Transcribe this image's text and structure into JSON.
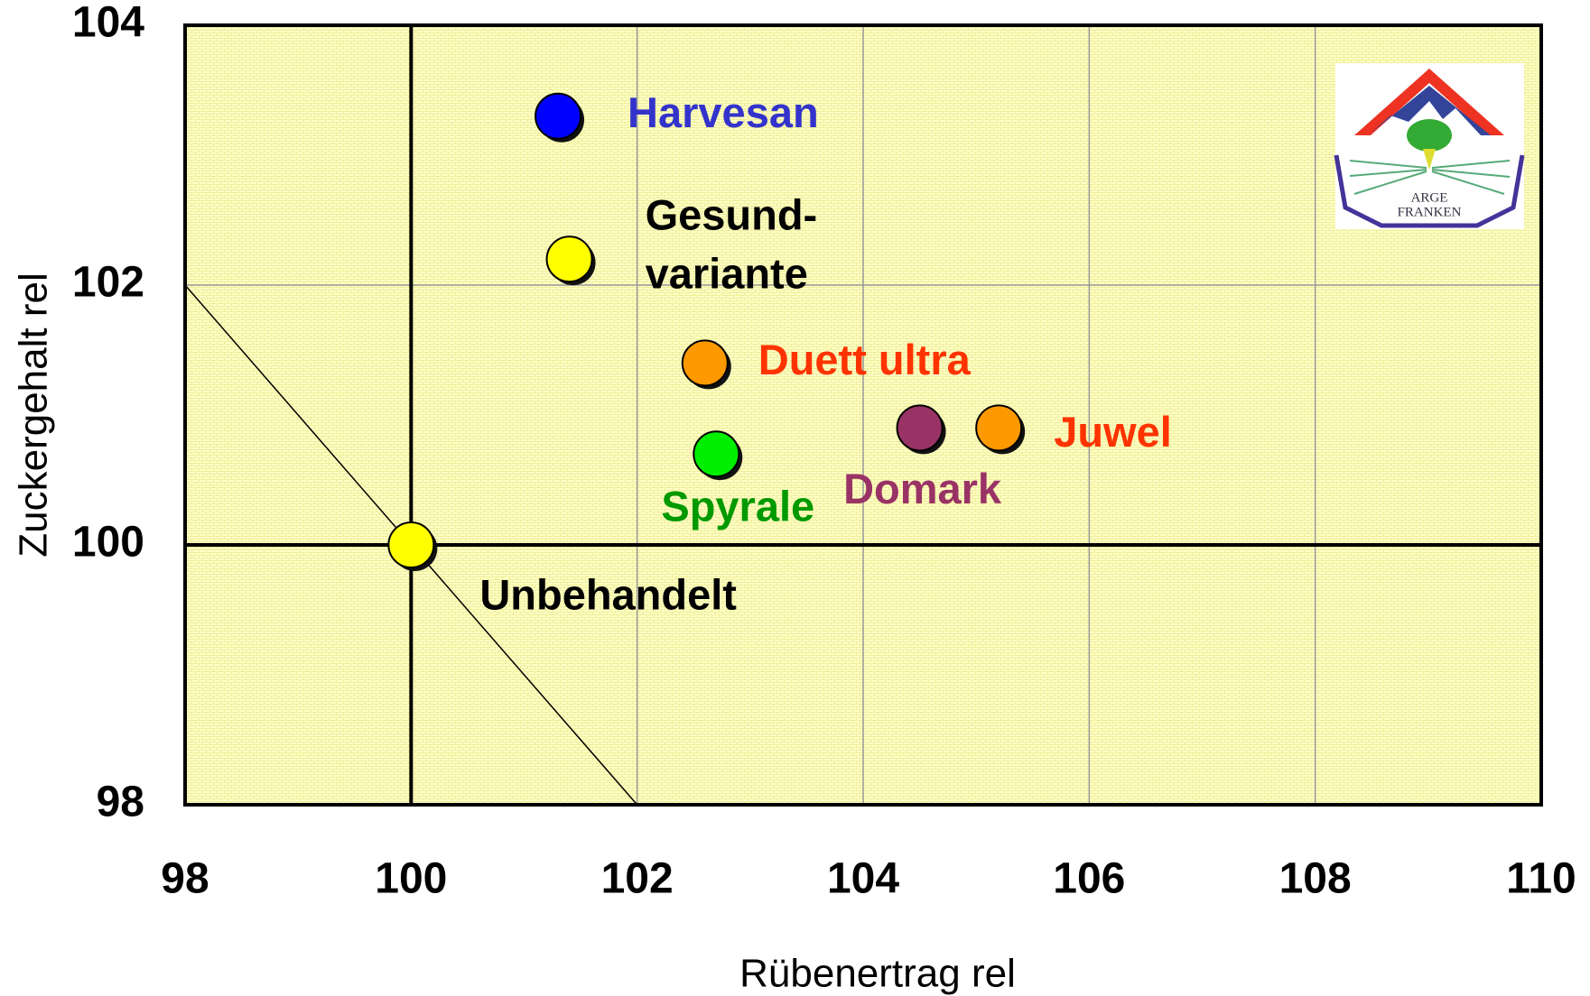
{
  "chart_data": {
    "type": "scatter",
    "x_label": "Rübenertrag rel",
    "y_label": "Zuckergehalt rel",
    "x": [
      101.3,
      101.4,
      102.6,
      102.7,
      104.5,
      105.2,
      100
    ],
    "values": [
      103.3,
      102.2,
      101.4,
      100.7,
      100.9,
      100.9,
      100
    ],
    "colors": [
      "#0000ff",
      "#ffff00",
      "#ff9900",
      "#00ee00",
      "#993366",
      "#ff9900",
      "#ffff00"
    ],
    "labels": [
      [
        "Harvesan"
      ],
      [
        "Gesund-",
        "variante"
      ],
      [
        "Duett ultra"
      ],
      [
        "Spyrale"
      ],
      [
        "Domark"
      ],
      [
        "Juwel"
      ],
      [
        "Unbehandelt"
      ]
    ],
    "label_colors": [
      "#3333cc",
      "#000000",
      "#ff3300",
      "#009900",
      "#993366",
      "#ff3300",
      "#000000"
    ],
    "xlim": [
      98,
      110
    ],
    "ylim": [
      98,
      104
    ],
    "xticks": [
      98,
      100,
      102,
      104,
      106,
      108,
      110
    ],
    "yticks": [
      98,
      100,
      102,
      104
    ],
    "grid": true,
    "reference_x": 100,
    "reference_y": 100,
    "diagonal": {
      "x": [
        98,
        102
      ],
      "y": [
        102,
        98
      ]
    },
    "logo": [
      "ARGE",
      "FRANKEN"
    ]
  }
}
